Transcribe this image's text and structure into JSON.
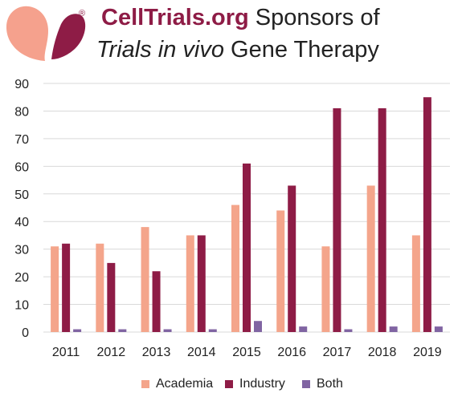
{
  "header": {
    "brand": "CellTrials.org",
    "title_line1_suffix": " Sponsors of",
    "title_line2_italic": "Trials in vivo",
    "title_line2_rest": " Gene Therapy",
    "registered_mark": "®"
  },
  "colors": {
    "academia": "#f4a58b",
    "industry": "#8e1c46",
    "both": "#8064a2",
    "grid": "#d9d9d9",
    "logo_left": "#f5a18d",
    "logo_right": "#8e1c46"
  },
  "chart_data": {
    "type": "bar",
    "title": "CellTrials.org Sponsors of Trials in vivo Gene Therapy",
    "categories": [
      "2011",
      "2012",
      "2013",
      "2014",
      "2015",
      "2016",
      "2017",
      "2018",
      "2019"
    ],
    "series": [
      {
        "name": "Academia",
        "values": [
          31,
          32,
          38,
          35,
          46,
          44,
          31,
          53,
          35
        ]
      },
      {
        "name": "Industry",
        "values": [
          32,
          25,
          22,
          35,
          61,
          53,
          81,
          81,
          85
        ]
      },
      {
        "name": "Both",
        "values": [
          1,
          1,
          1,
          1,
          4,
          2,
          1,
          2,
          2
        ]
      }
    ],
    "ylim": [
      0,
      90
    ],
    "yticks": [
      0,
      10,
      20,
      30,
      40,
      50,
      60,
      70,
      80,
      90
    ],
    "grid": true,
    "legend_position": "bottom"
  }
}
